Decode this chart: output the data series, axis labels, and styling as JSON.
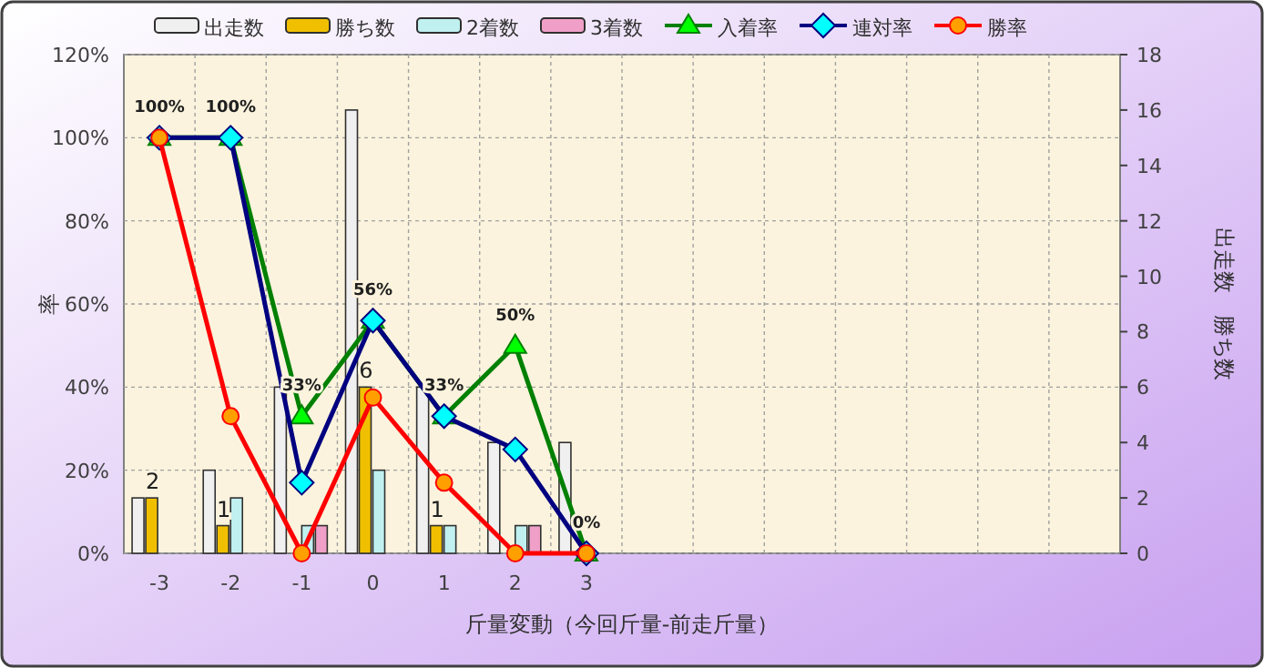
{
  "chart_data": {
    "type": "bar",
    "categories": [
      "-3",
      "-2",
      "-1",
      "0",
      "1",
      "2",
      "3",
      null,
      null,
      null,
      null,
      null,
      null,
      null
    ],
    "xlabel": "斤量変動（今回斤量-前走斤量）",
    "ylabel": "率",
    "y2label": "出走数　勝ち数",
    "ylim": [
      0,
      120
    ],
    "yticks": [
      {
        "value": 0,
        "label": "0%"
      },
      {
        "value": 20,
        "label": "20%"
      },
      {
        "value": 40,
        "label": "40%"
      },
      {
        "value": 60,
        "label": "60%"
      },
      {
        "value": 80,
        "label": "80%"
      },
      {
        "value": 100,
        "label": "100%"
      },
      {
        "value": 120,
        "label": "120%"
      }
    ],
    "y2lim": [
      0,
      18
    ],
    "y2ticks": [
      0,
      2,
      4,
      6,
      8,
      10,
      12,
      14,
      16,
      18
    ],
    "grid": true,
    "legend": "top",
    "series": [
      {
        "name": "出走数",
        "axis": "y2",
        "color": "#f0f0f0",
        "values": [
          2,
          3,
          6,
          16,
          6,
          4,
          4,
          null,
          null,
          null,
          null,
          null,
          null,
          null
        ]
      },
      {
        "name": "勝ち数",
        "axis": "y2",
        "color": "#f0c000",
        "values": [
          2,
          1,
          0,
          6,
          1,
          0,
          0,
          null,
          null,
          null,
          null,
          null,
          null,
          null
        ],
        "value_labels": [
          "2",
          "1",
          null,
          "6",
          "1",
          null,
          null,
          null,
          null,
          null,
          null,
          null,
          null,
          null
        ]
      },
      {
        "name": "2着数",
        "axis": "y2",
        "color": "#c0f0f0",
        "values": [
          0,
          2,
          1,
          3,
          1,
          1,
          0,
          null,
          null,
          null,
          null,
          null,
          null,
          null
        ]
      },
      {
        "name": "3着数",
        "axis": "y2",
        "color": "#f0a0c8",
        "values": [
          0,
          0,
          1,
          0,
          0,
          1,
          0,
          null,
          null,
          null,
          null,
          null,
          null,
          null
        ]
      },
      {
        "name": "入着率",
        "type": "line",
        "axis": "y",
        "color": "#008000",
        "marker": "triangle",
        "values": [
          100,
          100,
          33,
          56,
          33,
          50,
          0,
          null,
          null,
          null,
          null,
          null,
          null,
          null
        ],
        "value_labels": [
          "100%",
          "100%",
          "33%",
          "56%",
          "33%",
          "50%",
          "0%",
          null,
          null,
          null,
          null,
          null,
          null,
          null
        ]
      },
      {
        "name": "連対率",
        "type": "line",
        "axis": "y",
        "color": "#000080",
        "marker": "diamond",
        "values": [
          100,
          100,
          17,
          56,
          33,
          25,
          0,
          null,
          null,
          null,
          null,
          null,
          null,
          null
        ]
      },
      {
        "name": "勝率",
        "type": "line",
        "axis": "y",
        "color": "#ff0000",
        "marker": "circle",
        "values": [
          100,
          33,
          0,
          37.5,
          17,
          0,
          0,
          null,
          null,
          null,
          null,
          null,
          null,
          null
        ]
      }
    ]
  }
}
